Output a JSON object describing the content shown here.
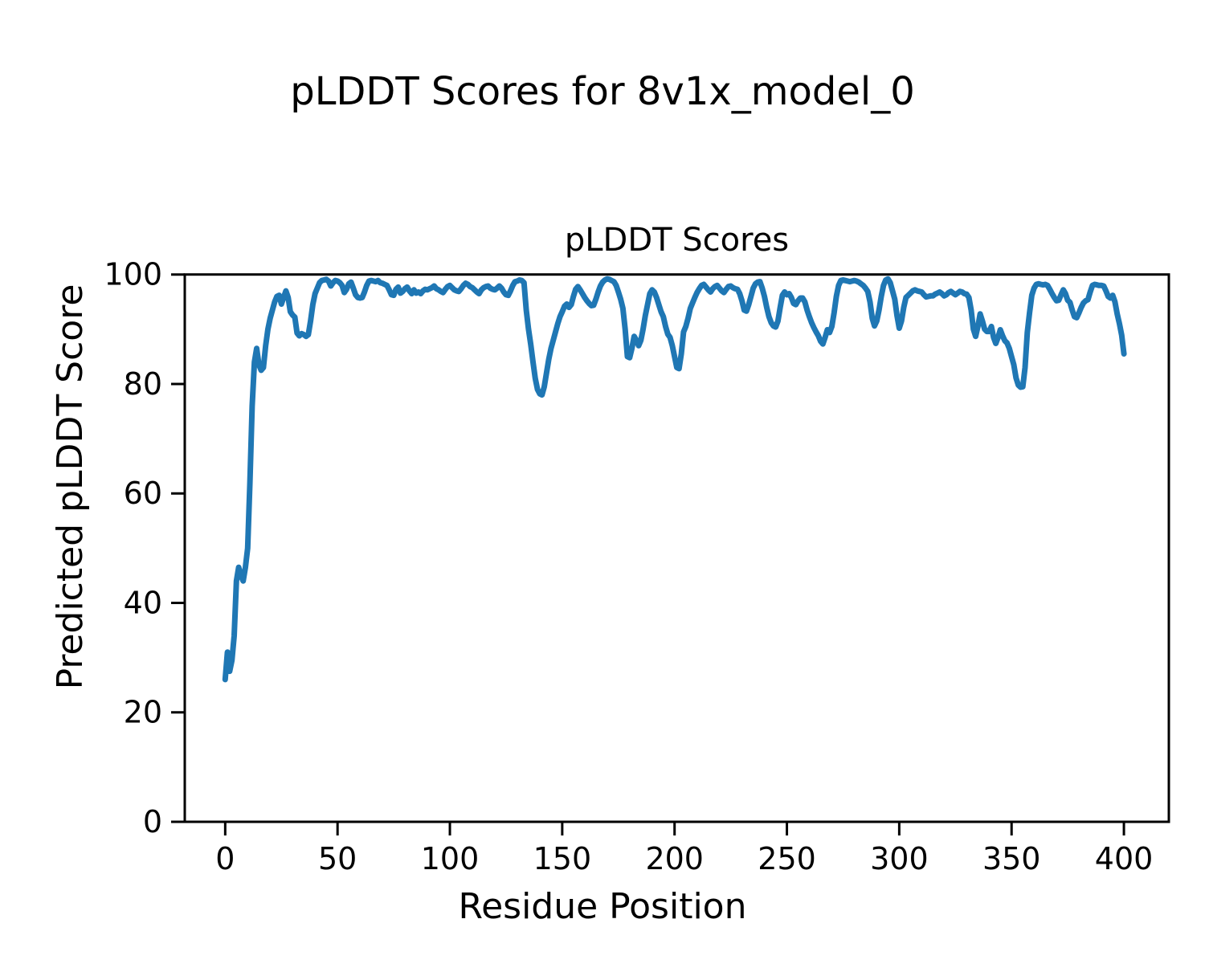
{
  "figure": {
    "suptitle": "pLDDT Scores for 8v1x_model_0",
    "background_color": "#ffffff",
    "text_color": "#000000"
  },
  "chart_data": {
    "type": "line",
    "title": "pLDDT Scores",
    "xlabel": "Residue Position",
    "ylabel": "Predicted pLDDT Score",
    "legend": "none",
    "grid": false,
    "line_color": "#1f77b4",
    "spine_color": "#000000",
    "xlim": [
      -18,
      420
    ],
    "ylim": [
      0,
      100
    ],
    "x_ticks": [
      0,
      50,
      100,
      150,
      200,
      250,
      300,
      350,
      400
    ],
    "y_ticks": [
      0,
      20,
      40,
      60,
      80,
      100
    ],
    "x_start": 0,
    "x_step": 1,
    "series": [
      {
        "name": "pLDDT",
        "values": [
          26,
          31,
          27.5,
          29.5,
          34,
          44,
          46.5,
          45,
          44,
          46.5,
          50,
          62,
          76,
          84,
          86.5,
          83.5,
          82.5,
          83,
          87,
          90,
          92,
          93.5,
          95,
          96,
          96.2,
          94.6,
          95.8,
          97,
          95.8,
          93.2,
          92.6,
          92.2,
          89.3,
          88.8,
          89.2,
          89,
          88.7,
          89,
          91.5,
          94.5,
          96.5,
          97.5,
          98.5,
          98.9,
          99,
          99.1,
          98.8,
          97.9,
          98.5,
          98.9,
          98.8,
          98.5,
          98,
          96.7,
          97.3,
          98.3,
          98.6,
          97.5,
          96.3,
          95.8,
          95.7,
          95.8,
          96.8,
          98,
          98.8,
          98.9,
          98.8,
          98.7,
          98.9,
          98.5,
          98.4,
          98.2,
          98,
          97.2,
          96.3,
          96.2,
          97.3,
          97.7,
          96.6,
          96.9,
          97.4,
          97.7,
          97,
          96.5,
          97.2,
          96.6,
          96.8,
          96.5,
          97,
          97.3,
          97.2,
          97.4,
          97.6,
          97.9,
          97.4,
          97.2,
          96.9,
          96.7,
          97.3,
          97.8,
          98,
          97.6,
          97.2,
          97,
          96.9,
          97.4,
          98,
          98.4,
          98.2,
          97.8,
          97.6,
          97.2,
          96.8,
          96.5,
          97.2,
          97.6,
          97.8,
          97.9,
          97.5,
          97.3,
          97.2,
          97.5,
          97.9,
          97.5,
          96.8,
          96.3,
          96.2,
          97,
          98,
          98.7,
          98.8,
          99,
          98.9,
          98.5,
          93.5,
          90,
          87.2,
          84,
          81,
          79,
          78.2,
          78,
          79.5,
          82,
          84.5,
          86.5,
          88,
          89.5,
          91,
          92.3,
          93.2,
          94.2,
          94.6,
          94,
          94.5,
          96,
          97.3,
          97.8,
          97.2,
          96.5,
          95.8,
          95.2,
          94.7,
          94.3,
          94.4,
          95.5,
          96.8,
          97.9,
          98.6,
          99,
          99.2,
          99.1,
          98.9,
          98.7,
          98,
          96.8,
          95.5,
          93.8,
          90,
          85,
          84.8,
          86.5,
          88.7,
          88,
          87,
          88,
          90,
          92.5,
          94.5,
          96.5,
          97.2,
          96.8,
          95.8,
          94.5,
          93.2,
          92.3,
          90.5,
          89.1,
          88.5,
          87,
          85,
          83,
          82.8,
          85.5,
          89.5,
          90.5,
          92,
          93.8,
          94.8,
          95.8,
          96.7,
          97.4,
          98,
          98.2,
          97.7,
          97.2,
          96.8,
          97.4,
          97.8,
          98,
          97.5,
          97,
          96.7,
          97.3,
          97.8,
          97.9,
          97.6,
          97.4,
          97.3,
          96.5,
          95.2,
          93.5,
          93.3,
          94.5,
          96,
          97.5,
          98.3,
          98.6,
          98.7,
          97.5,
          96,
          94,
          92.3,
          91.2,
          90.6,
          90.4,
          91.5,
          94,
          96.2,
          96.8,
          96.3,
          96.5,
          95.8,
          94.7,
          94.5,
          95.2,
          95.7,
          95.7,
          95,
          93.5,
          92.3,
          91.2,
          90.3,
          89.5,
          88.8,
          87.8,
          87.3,
          88.5,
          89.9,
          89.4,
          90.5,
          93,
          96,
          98,
          98.9,
          99,
          98.9,
          98.8,
          98.7,
          98.8,
          98.9,
          98.8,
          98.6,
          98.3,
          98,
          97.5,
          96.9,
          95,
          92,
          90.6,
          91.5,
          93.5,
          96,
          98,
          99,
          99.2,
          98.5,
          97,
          95.5,
          92.5,
          90.2,
          91.5,
          94,
          95.8,
          96.2,
          96.6,
          97,
          97.2,
          97,
          96.9,
          96.8,
          96.3,
          95.9,
          96,
          96.1,
          96.1,
          96.4,
          96.6,
          96.8,
          96.5,
          96.1,
          96.3,
          96.7,
          96.9,
          96.6,
          96.3,
          96.6,
          96.9,
          96.8,
          96.5,
          96.4,
          95.8,
          93.5,
          90,
          88.7,
          90.5,
          92.8,
          91.5,
          90,
          89.6,
          89.6,
          90.5,
          88.5,
          87.4,
          88.5,
          89.9,
          88.8,
          87.9,
          87.5,
          86.5,
          85,
          83.5,
          81.1,
          79.8,
          79.4,
          79.5,
          83,
          89.4,
          93,
          96.2,
          97.5,
          98.2,
          98.3,
          98.2,
          98.1,
          98.2,
          98,
          97.3,
          96.5,
          95.8,
          95.2,
          95.3,
          96.3,
          97.2,
          96.5,
          95.3,
          94.9,
          93.5,
          92.3,
          92.1,
          93,
          94,
          94.8,
          95.2,
          95.4,
          96.8,
          98,
          98.2,
          98.1,
          98,
          98,
          97.9,
          97,
          96,
          95.7,
          96.2,
          95,
          92.8,
          91,
          88.9,
          85.5
        ]
      }
    ]
  }
}
